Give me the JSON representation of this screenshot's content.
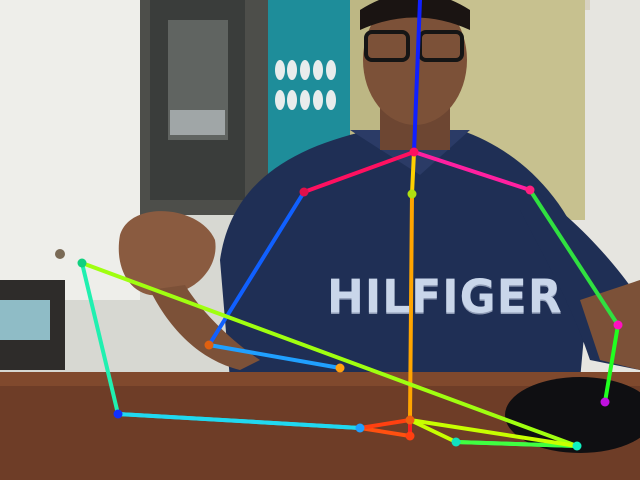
{
  "scene": {
    "description_type": "webcam frame with pose-estimation skeleton overlay",
    "shirt_print": "HILFIGER"
  },
  "skeleton": {
    "keypoints": [
      {
        "id": "head-top",
        "color": "#1018e0"
      },
      {
        "id": "neck",
        "color": "#ff1060"
      },
      {
        "id": "right-shoulder",
        "color": "#e0104a"
      },
      {
        "id": "left-shoulder",
        "color": "#ff2080"
      },
      {
        "id": "right-elbow",
        "color": "#e06010"
      },
      {
        "id": "right-wrist",
        "color": "#ffa010"
      },
      {
        "id": "left-elbow",
        "color": "#ff10c0"
      },
      {
        "id": "left-wrist",
        "color": "#c010e0"
      },
      {
        "id": "spine-mid",
        "color": "#b0e010"
      },
      {
        "id": "pelvis",
        "color": "#f06010"
      },
      {
        "id": "hip-right",
        "color": "#ff4010"
      },
      {
        "id": "hip-left",
        "color": "#10e0c0"
      },
      {
        "id": "knee-right",
        "color": "#20a0ff"
      },
      {
        "id": "foot-right",
        "color": "#1030ff"
      },
      {
        "id": "knee-left",
        "color": "#10f0c0"
      },
      {
        "id": "foot-left",
        "color": "#10d080"
      }
    ],
    "bones": [
      {
        "from": "head-top",
        "to": "neck",
        "color": "#1020ff"
      },
      {
        "from": "neck",
        "to": "right-shoulder",
        "color": "#ff1060"
      },
      {
        "from": "neck",
        "to": "left-shoulder",
        "color": "#ff20a0"
      },
      {
        "from": "right-shoulder",
        "to": "right-elbow",
        "color": "#1060ff"
      },
      {
        "from": "right-elbow",
        "to": "right-wrist",
        "color": "#20a0ff"
      },
      {
        "from": "left-shoulder",
        "to": "left-elbow",
        "color": "#30e040"
      },
      {
        "from": "left-elbow",
        "to": "left-wrist",
        "color": "#20ff20"
      },
      {
        "from": "neck",
        "to": "spine-mid",
        "color": "#ffd000"
      },
      {
        "from": "spine-mid",
        "to": "pelvis",
        "color": "#ffa500"
      },
      {
        "from": "pelvis",
        "to": "hip-right",
        "color": "#ff2020"
      },
      {
        "from": "hip-right",
        "to": "knee-right",
        "color": "#ff5010"
      },
      {
        "from": "knee-right",
        "to": "foot-right",
        "color": "#20e0f0"
      },
      {
        "from": "foot-right",
        "to": "head-top",
        "color": "none"
      },
      {
        "from": "pelvis",
        "to": "hip-left",
        "color": "#c8ff00"
      },
      {
        "from": "hip-left",
        "to": "knee-left",
        "color": "#20ff80"
      },
      {
        "from": "knee-left",
        "to": "foot-left",
        "color": "#a0ff10"
      }
    ]
  }
}
